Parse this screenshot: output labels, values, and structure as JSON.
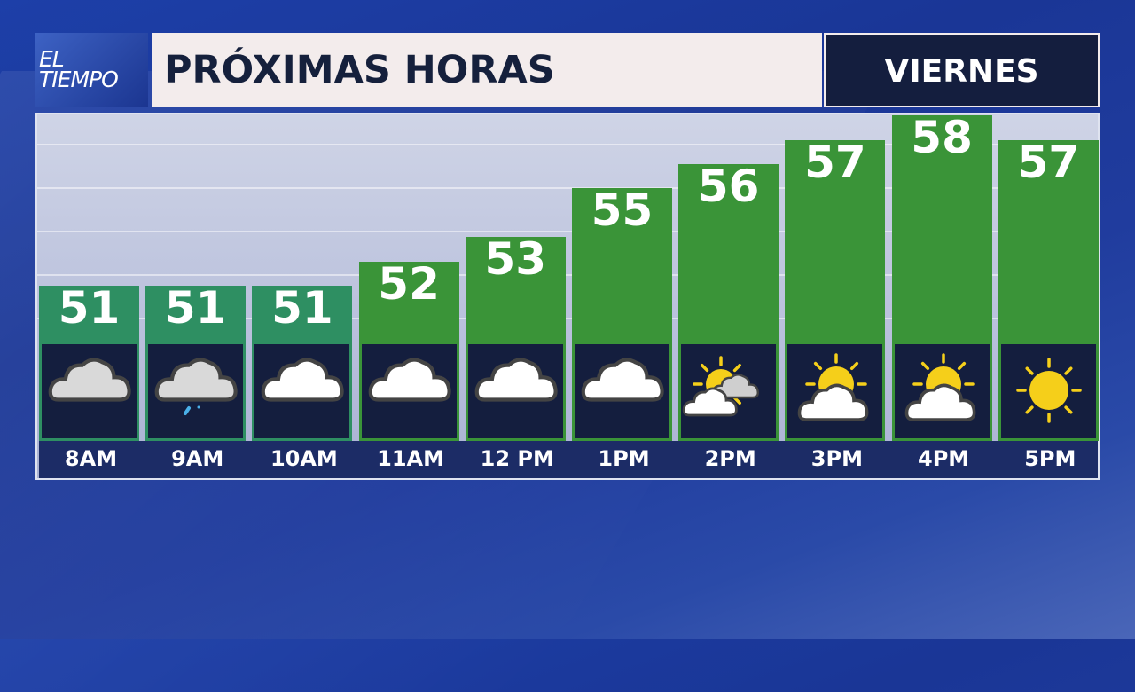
{
  "logo": {
    "text": "EL TIEMPO",
    "line1": "EL",
    "line2": "TIEMPO"
  },
  "header": {
    "title": "PRÓXIMAS HORAS",
    "day": "VIERNES"
  },
  "colors": {
    "bar_early": "#2e8f62",
    "bar": "#3a9438",
    "icon_bg": "#141e3e",
    "label_bg": "#1c2c66",
    "sun": "#f5cf1a"
  },
  "chart_data": {
    "type": "bar",
    "categories": [
      "8AM",
      "9AM",
      "10AM",
      "11AM",
      "12 PM",
      "1PM",
      "2PM",
      "3PM",
      "4PM",
      "5PM"
    ],
    "values": [
      51,
      51,
      51,
      52,
      53,
      55,
      56,
      57,
      58,
      57
    ],
    "icons": [
      "cloudy-gray-icon",
      "cloudy-drizzle-icon",
      "cloudy-icon",
      "cloudy-icon",
      "cloudy-icon",
      "cloudy-icon",
      "partly-sunny-icon",
      "mostly-sunny-icon",
      "mostly-sunny-icon",
      "sunny-icon"
    ],
    "data_labels": true
  }
}
